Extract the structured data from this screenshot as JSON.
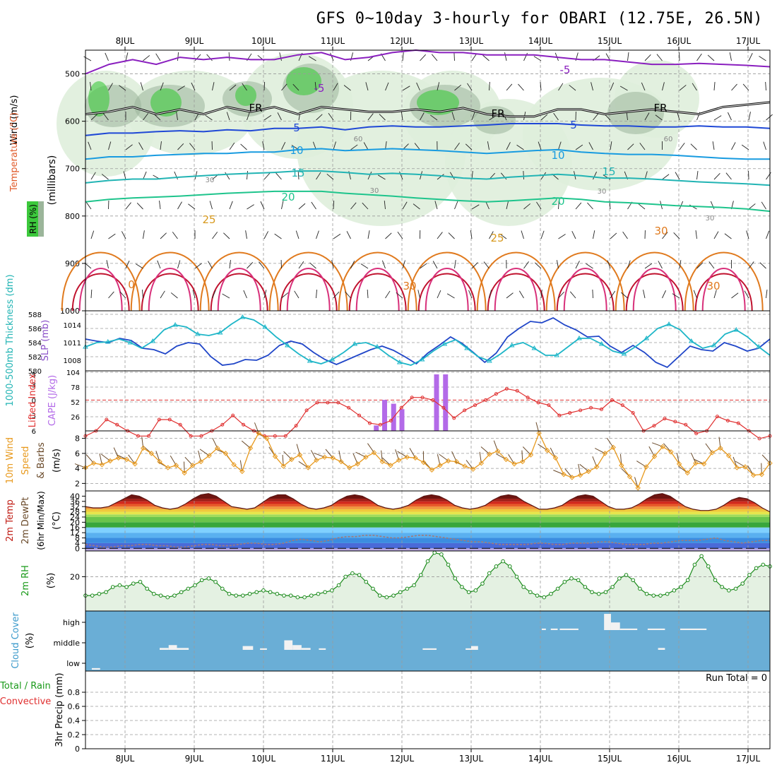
{
  "title": "GFS 0~10day 3-hourly for OBARI (12.75E, 26.5N)",
  "date_labels": [
    "8JUL",
    "9JUL",
    "10JUL",
    "11JUL",
    "12JUL",
    "13JUL",
    "14JUL",
    "15JUL",
    "16JUL",
    "17JUL"
  ],
  "run_total_label": "Run Total = 0",
  "colors": {
    "frame": "#000000",
    "grid": "#9a9a9a",
    "rh_fill": "#dfeedc",
    "cloud_bg": "#6aaed6"
  },
  "chart_data": [
    {
      "type": "contour",
      "panel": "upper-air",
      "ylabel_parts": [
        "RH (%)",
        "Temperature (°C)",
        "Wind (m/s)"
      ],
      "ylabel_units": "(millibars)",
      "y_ticks": [
        500,
        600,
        700,
        800,
        900,
        1000
      ],
      "ylim": [
        450,
        1000
      ],
      "isotherm_labels": [
        "-5",
        "-5",
        "FR",
        "FR",
        "FR",
        "5",
        "5",
        "10",
        "10",
        "15",
        "15",
        "20",
        "20",
        "25",
        "25",
        "30",
        "30",
        "30",
        "0"
      ],
      "rh_labels": [
        "30",
        "30",
        "30",
        "30",
        "60",
        "60"
      ],
      "isotherms": [
        {
          "temp": -5,
          "color": "#8a1fbf",
          "levels_mb": [
            500,
            480,
            470,
            480,
            465,
            470,
            465,
            470,
            470,
            460,
            455,
            470,
            465,
            455,
            450,
            455,
            455,
            460,
            460,
            460,
            465,
            470,
            470,
            475,
            480,
            480,
            478,
            480,
            482,
            485
          ]
        },
        {
          "temp": 0,
          "color": "#000000",
          "levels_mb": [
            585,
            580,
            570,
            585,
            575,
            585,
            570,
            580,
            570,
            585,
            570,
            575,
            580,
            580,
            575,
            580,
            572,
            585,
            590,
            590,
            575,
            575,
            585,
            580,
            575,
            580,
            585,
            570,
            565,
            560
          ]
        },
        {
          "temp": 5,
          "color": "#1f48d6",
          "levels_mb": [
            630,
            625,
            625,
            622,
            620,
            622,
            618,
            620,
            615,
            615,
            612,
            618,
            612,
            610,
            612,
            612,
            610,
            608,
            605,
            605,
            605,
            608,
            610,
            610,
            612,
            612,
            610,
            612,
            612,
            615
          ]
        },
        {
          "temp": 10,
          "color": "#189be0",
          "levels_mb": [
            680,
            675,
            675,
            672,
            670,
            668,
            668,
            665,
            665,
            660,
            658,
            662,
            660,
            658,
            660,
            662,
            665,
            668,
            665,
            662,
            660,
            665,
            668,
            670,
            670,
            672,
            675,
            678,
            680,
            680
          ]
        },
        {
          "temp": 15,
          "color": "#22b4b4",
          "levels_mb": [
            730,
            725,
            722,
            722,
            718,
            715,
            712,
            710,
            708,
            705,
            705,
            708,
            712,
            710,
            712,
            715,
            720,
            722,
            718,
            715,
            712,
            715,
            720,
            720,
            722,
            725,
            728,
            730,
            732,
            735
          ]
        },
        {
          "temp": 20,
          "color": "#1ec48c",
          "levels_mb": [
            770,
            765,
            762,
            760,
            758,
            755,
            752,
            750,
            748,
            748,
            748,
            752,
            755,
            758,
            762,
            765,
            768,
            770,
            768,
            765,
            762,
            765,
            770,
            772,
            775,
            778,
            780,
            782,
            785,
            790
          ]
        }
      ]
    },
    {
      "type": "line",
      "panel": "thickness-slp",
      "ylabel_left": "1000-500mb Thickness (dm)",
      "ylabel_right": "SLP (mb)",
      "left_ticks": [
        580,
        582,
        584,
        586,
        588
      ],
      "right_ticks": [
        1008,
        1011,
        1014
      ],
      "series": [
        {
          "color": "#2046c8",
          "values": [
            584.5,
            584.2,
            584.0,
            584.6,
            584.3,
            583.2,
            583.0,
            582.4,
            583.5,
            584.0,
            583.8,
            582.0,
            580.8,
            581.0,
            581.6,
            581.5,
            582.2,
            583.6,
            584.2,
            583.8,
            582.6,
            581.6,
            580.9,
            581.6,
            582.3,
            583.0,
            583.5,
            582.9,
            582.0,
            581.0,
            582.5,
            583.6,
            584.8,
            583.9,
            582.6,
            581.2,
            582.5,
            584.8,
            586.0,
            587.0,
            586.8,
            587.5,
            586.5,
            585.8,
            584.8,
            584.9,
            583.5,
            582.6,
            583.6,
            582.6,
            581.2,
            580.5,
            582.0,
            583.5,
            583.0,
            582.8,
            584.0,
            583.5,
            582.8,
            583.2,
            584.5
          ]
        },
        {
          "color": "#1eb6c8",
          "values": [
            583.4,
            584.0,
            584.1,
            584.5,
            584.0,
            583.2,
            584.2,
            585.8,
            586.5,
            586.2,
            585.2,
            585.0,
            585.4,
            586.6,
            587.6,
            587.2,
            586.2,
            584.8,
            583.6,
            582.4,
            581.4,
            581.0,
            581.6,
            582.6,
            583.8,
            584.0,
            583.4,
            582.2,
            581.2,
            580.8,
            581.6,
            582.8,
            583.8,
            584.4,
            583.2,
            582.0,
            581.4,
            582.4,
            583.6,
            584.0,
            583.2,
            582.2,
            582.2,
            583.4,
            584.6,
            584.6,
            583.8,
            582.8,
            582.4,
            583.4,
            584.6,
            586.0,
            586.6,
            585.8,
            584.2,
            583.2,
            583.6,
            585.2,
            585.8,
            584.8,
            583.4,
            582.2
          ]
        }
      ]
    },
    {
      "type": "line+bar",
      "panel": "lifted-index-cape",
      "ylabel_left": "Lifted Index",
      "ylabel_right": "CAPE (J/kg)",
      "left_ticks": [
        "-5",
        "-3",
        "0",
        "3",
        "6"
      ],
      "right_ticks": [
        26,
        52,
        78,
        104
      ],
      "lifted_index": [
        7,
        6,
        3.8,
        4.8,
        6,
        7,
        7,
        3.8,
        3.8,
        4.8,
        7,
        7,
        6,
        4.8,
        3,
        4.8,
        6,
        7,
        7,
        7,
        5,
        2,
        0.5,
        0.5,
        0.5,
        1.5,
        3,
        4.5,
        4.8,
        4,
        1.5,
        -0.5,
        -0.5,
        0,
        1.5,
        3.5,
        2,
        1,
        0,
        -1.2,
        -2.2,
        -1.8,
        -0.5,
        0.5,
        1,
        3,
        2.5,
        2,
        1.5,
        1.8,
        0,
        1,
        2.5,
        6,
        5,
        3.6,
        4.2,
        4.8,
        6.5,
        6,
        3.2,
        4,
        4.5,
        6,
        7.5,
        7
      ],
      "cape_bars": [
        {
          "x": 3.63,
          "value": 10
        },
        {
          "x": 3.75,
          "value": 57
        },
        {
          "x": 3.88,
          "value": 50
        },
        {
          "x": 4.0,
          "value": 40
        },
        {
          "x": 4.5,
          "value": 104
        },
        {
          "x": 4.63,
          "value": 104
        }
      ]
    },
    {
      "type": "line",
      "panel": "10m-wind",
      "ylabel": "10m Wind Speed (m/s) & Barbs",
      "ylim": [
        1,
        9
      ],
      "y_ticks": [
        2,
        4,
        6,
        8
      ],
      "series": [
        {
          "color": "#e89a1e",
          "values": [
            4.1,
            4.7,
            4.5,
            5.0,
            5.4,
            5.2,
            4.6,
            6.7,
            6.0,
            4.9,
            4.1,
            4.4,
            3.4,
            4.4,
            4.9,
            5.7,
            6.7,
            6.0,
            4.5,
            3.6,
            6.7,
            8.7,
            8.0,
            5.6,
            4.3,
            5.2,
            5.8,
            4.1,
            5.1,
            5.5,
            5.4,
            4.9,
            4.1,
            4.6,
            5.5,
            6.1,
            4.9,
            4.4,
            5.1,
            5.5,
            5.4,
            4.8,
            3.8,
            4.4,
            5.0,
            4.9,
            4.3,
            3.9,
            4.7,
            5.9,
            6.3,
            5.2,
            4.6,
            4.9,
            5.8,
            8.7,
            6.4,
            5.4,
            3.2,
            2.8,
            3.1,
            3.6,
            4.2,
            6.0,
            6.8,
            4.4,
            2.9,
            1.4,
            4.2,
            5.6,
            6.9,
            6.2,
            4.6,
            3.4,
            4.7,
            4.6,
            6.1,
            6.7,
            5.7,
            4.1,
            4.2,
            3.1,
            3.2,
            4.7
          ]
        }
      ]
    },
    {
      "type": "area",
      "panel": "2m-temp-dewpoint",
      "ylabel": "2m Temp 2m DewPt (6hr Min/Max) (°C)",
      "ylim": [
        -2,
        44
      ],
      "y_ticks": [
        0,
        4,
        8,
        12,
        16,
        20,
        24,
        28,
        32,
        36,
        40
      ],
      "series": [
        {
          "name": "",
          "values": [
            32,
            31,
            31,
            32,
            35,
            38,
            41,
            40,
            37,
            33,
            31,
            30,
            31,
            34,
            38,
            41,
            42,
            40,
            36,
            32,
            31,
            30,
            31,
            35,
            39,
            41,
            41,
            38,
            34,
            31,
            30,
            31,
            33,
            37,
            40,
            41,
            40,
            37,
            33,
            31,
            30,
            31,
            33,
            37,
            40,
            41,
            40,
            37,
            33,
            31,
            30,
            31,
            33,
            37,
            40,
            41,
            40,
            36,
            33,
            30,
            30,
            31,
            33,
            37,
            40,
            41,
            40,
            36,
            32,
            30,
            30,
            31,
            34,
            38,
            41,
            42,
            40,
            36,
            32,
            30,
            29,
            29,
            30,
            33,
            37,
            39,
            38,
            35,
            31,
            28
          ]
        },
        {
          "name": "",
          "values": [
            3,
            2,
            1,
            1,
            2,
            2,
            3,
            3,
            2,
            2,
            1,
            1,
            2,
            3,
            3,
            2,
            2,
            3,
            4,
            4,
            3,
            3,
            4,
            6,
            7,
            6,
            5,
            6,
            8,
            9,
            9,
            10,
            10,
            9,
            8,
            8,
            9,
            10,
            10,
            9,
            8,
            7,
            6,
            5,
            5,
            4,
            3,
            3,
            3,
            3,
            4,
            4,
            3,
            3,
            4,
            4,
            4,
            5,
            5,
            4,
            3,
            3,
            3,
            4,
            4,
            5,
            6,
            6,
            6,
            7,
            8,
            6,
            5,
            4,
            5,
            6,
            6
          ]
        }
      ]
    },
    {
      "type": "area",
      "panel": "2m-rh",
      "ylabel": "2m RH (%)",
      "ylim": [
        0,
        35
      ],
      "y_ticks": [
        20
      ],
      "values": [
        9,
        9,
        10,
        11,
        14,
        15,
        14,
        16,
        17,
        13,
        10,
        9,
        8,
        9,
        11,
        13,
        15,
        18,
        19,
        17,
        13,
        10,
        9,
        9,
        10,
        11,
        12,
        11,
        10,
        9,
        9,
        8,
        8,
        9,
        10,
        11,
        12,
        15,
        20,
        22,
        21,
        17,
        13,
        9,
        8,
        9,
        11,
        13,
        15,
        21,
        29,
        34,
        33,
        27,
        19,
        14,
        11,
        12,
        16,
        22,
        26,
        29,
        26,
        20,
        14,
        11,
        9,
        8,
        10,
        13,
        17,
        19,
        18,
        14,
        11,
        10,
        11,
        14,
        19,
        21,
        18,
        13,
        10,
        9,
        9,
        10,
        12,
        14,
        18,
        27,
        32,
        26,
        18,
        14,
        12,
        13,
        16,
        21,
        25,
        27,
        26
      ]
    },
    {
      "type": "bar",
      "panel": "cloud-cover",
      "ylabel": "Cloud Cover (%)",
      "y_ticks": [
        "high",
        "middle",
        "low"
      ],
      "high": [
        {
          "x0": 6.02,
          "x1": 6.08,
          "value": 8
        },
        {
          "x0": 6.15,
          "x1": 6.25,
          "value": 8
        },
        {
          "x0": 6.28,
          "x1": 6.55,
          "value": 8
        },
        {
          "x0": 6.92,
          "x1": 7.02,
          "value": 85
        },
        {
          "x0": 7.02,
          "x1": 7.15,
          "value": 40
        },
        {
          "x0": 7.15,
          "x1": 7.4,
          "value": 8
        },
        {
          "x0": 7.55,
          "x1": 7.8,
          "value": 8
        },
        {
          "x0": 8.02,
          "x1": 8.4,
          "value": 8
        }
      ],
      "middle": [
        {
          "x0": 0.5,
          "x1": 0.63,
          "value": 10
        },
        {
          "x0": 0.63,
          "x1": 0.75,
          "value": 25
        },
        {
          "x0": 0.75,
          "x1": 0.92,
          "value": 10
        },
        {
          "x0": 1.7,
          "x1": 1.85,
          "value": 20
        },
        {
          "x0": 1.95,
          "x1": 2.05,
          "value": 8
        },
        {
          "x0": 2.3,
          "x1": 2.42,
          "value": 50
        },
        {
          "x0": 2.42,
          "x1": 2.55,
          "value": 25
        },
        {
          "x0": 2.55,
          "x1": 2.68,
          "value": 10
        },
        {
          "x0": 2.8,
          "x1": 2.9,
          "value": 8
        },
        {
          "x0": 4.3,
          "x1": 4.5,
          "value": 8
        },
        {
          "x0": 4.92,
          "x1": 5.0,
          "value": 8
        },
        {
          "x0": 5.0,
          "x1": 5.1,
          "value": 20
        },
        {
          "x0": 7.7,
          "x1": 7.8,
          "value": 10
        }
      ],
      "low": [
        {
          "x0": -0.48,
          "x1": -0.36,
          "value": 8
        }
      ]
    },
    {
      "type": "bar",
      "panel": "3hr-precip",
      "ylabel_parts": [
        "3hr Precip (mm)",
        "Total / Rain",
        "Convective"
      ],
      "ylim": [
        0,
        1.0
      ],
      "y_ticks": [
        0,
        0.2,
        0.4,
        0.6,
        0.8
      ],
      "values": []
    }
  ]
}
